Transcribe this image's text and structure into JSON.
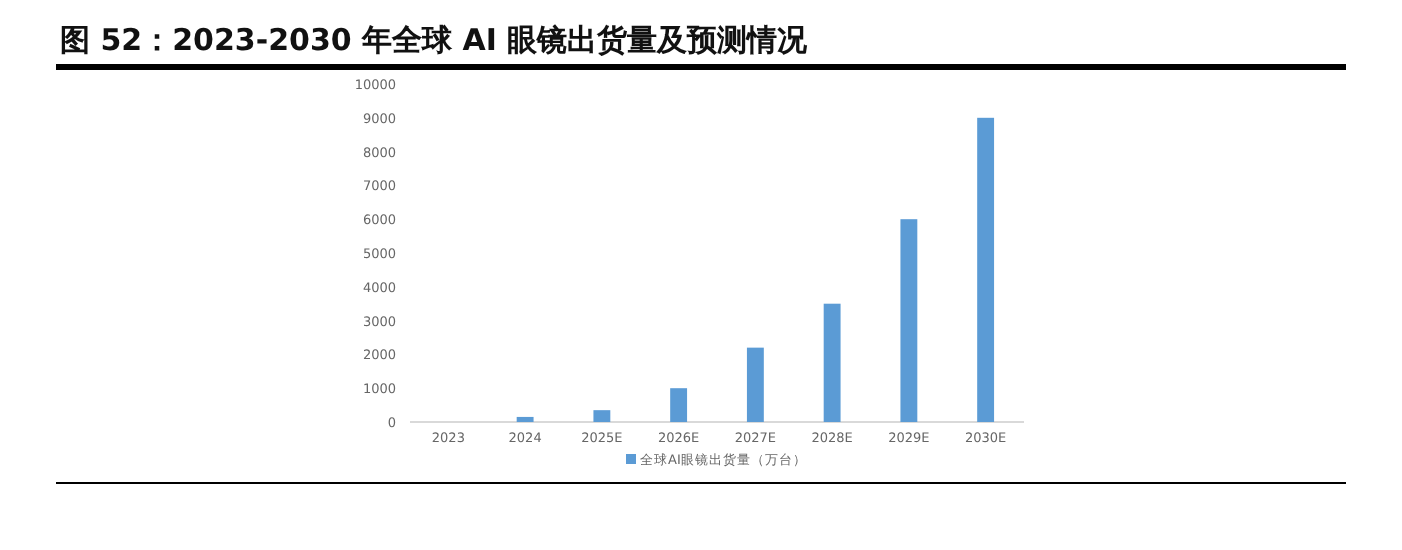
{
  "chart_data": {
    "type": "bar",
    "title": "图 52：2023-2030 年全球 AI 眼镜出货量及预测情况",
    "categories": [
      "2023",
      "2024",
      "2025E",
      "2026E",
      "2027E",
      "2028E",
      "2029E",
      "2030E"
    ],
    "series": [
      {
        "name": "全球AI眼镜出货量（万台）",
        "color": "#5b9bd5",
        "values": [
          null,
          150,
          350,
          1000,
          2200,
          3500,
          6000,
          9000
        ]
      }
    ],
    "ylim": [
      0,
      10000
    ],
    "yticks": [
      0,
      1000,
      2000,
      3000,
      4000,
      5000,
      6000,
      7000,
      8000,
      9000,
      10000
    ],
    "legend": "bottom"
  }
}
